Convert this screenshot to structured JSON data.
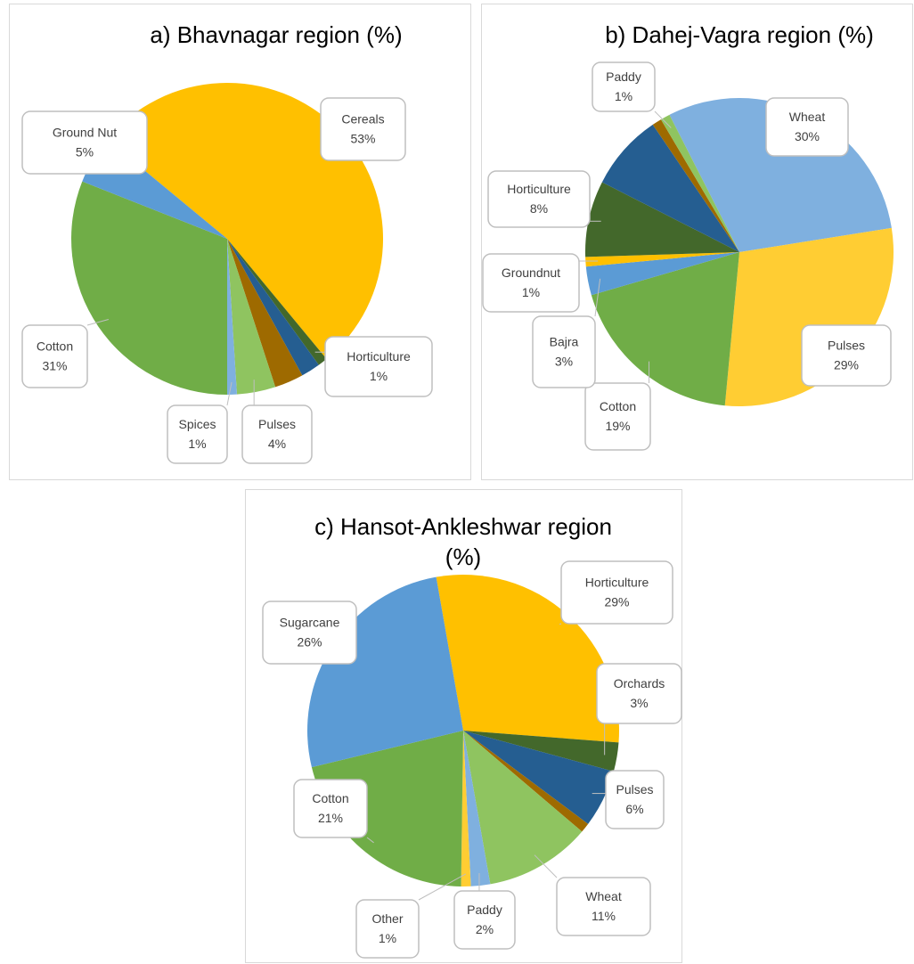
{
  "chart_data": [
    {
      "type": "pie",
      "title": "a) Bhavnagar region (%)",
      "categories": [
        "Cereals",
        "Horticulture",
        null,
        null,
        "Pulses",
        "Spices",
        "Cotton",
        "Ground Nut"
      ],
      "values": [
        53,
        1,
        2,
        3,
        4,
        1,
        31,
        5
      ],
      "value_labels": [
        "53%",
        "1%",
        null,
        null,
        "4%",
        "1%",
        "31%",
        "5%"
      ],
      "colors": [
        "#FFC000",
        "#43682B",
        "#255E91",
        "#9E6A00",
        "#8FC460",
        "#7FB0DF",
        "#70AD47",
        "#5B9BD5"
      ]
    },
    {
      "type": "pie",
      "title": "b) Dahej-Vagra region (%)",
      "categories": [
        "Wheat",
        "Pulses",
        "Cotton",
        "Bajra",
        "Groundnut",
        "Horticulture",
        null,
        null,
        "Paddy"
      ],
      "values": [
        30,
        29,
        19,
        3,
        1,
        8,
        8,
        1,
        1
      ],
      "value_labels": [
        "30%",
        "29%",
        "19%",
        "3%",
        "1%",
        "8%",
        null,
        null,
        "1%"
      ],
      "colors": [
        "#7FB0DF",
        "#FFCD33",
        "#70AD47",
        "#5B9BD5",
        "#FFC000",
        "#43682B",
        "#255E91",
        "#9E6A00",
        "#8FC460"
      ]
    },
    {
      "type": "pie",
      "title": "c) Hansot-Ankleshwar region (%)",
      "categories": [
        "Horticulture",
        "Orchards",
        "Pulses",
        null,
        "Wheat",
        "Paddy",
        "Other",
        "Cotton",
        "Sugarcane"
      ],
      "values": [
        29,
        3,
        6,
        1,
        11,
        2,
        1,
        21,
        26
      ],
      "value_labels": [
        "29%",
        "3%",
        "6%",
        null,
        "11%",
        "2%",
        "1%",
        "21%",
        "26%"
      ],
      "colors": [
        "#FFC000",
        "#43682B",
        "#255E91",
        "#9E6A00",
        "#8FC460",
        "#7FB0DF",
        "#FFCD33",
        "#70AD47",
        "#5B9BD5"
      ]
    }
  ]
}
